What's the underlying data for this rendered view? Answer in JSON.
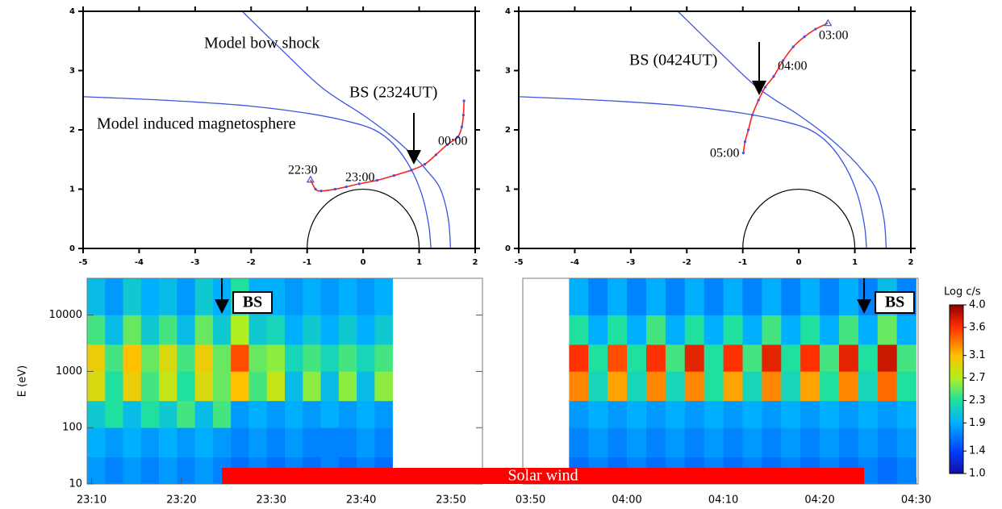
{
  "chart_data": [
    {
      "type": "orbit",
      "xlim": [
        -5,
        2
      ],
      "ylim": [
        0,
        4
      ],
      "xticks": [
        -5,
        -4,
        -3,
        -2,
        -1,
        0,
        1,
        2
      ],
      "yticks": [
        0,
        1,
        2,
        3,
        4
      ],
      "planet": {
        "color": "#000000",
        "radius": 1
      },
      "series": [
        {
          "name": "Model bow shock",
          "color": "#3a55e0",
          "x": [
            1.56,
            1.52,
            1.38,
            1.15,
            0.91,
            0.5,
            0,
            -0.72,
            -1.4,
            -2.16
          ],
          "y": [
            0,
            0.5,
            1.0,
            1.3,
            1.55,
            1.9,
            2.25,
            2.7,
            3.3,
            4
          ]
        },
        {
          "name": "Model induced magnetosphere",
          "color": "#3a55e0",
          "x": [
            1.21,
            1.17,
            1.05,
            0.85,
            0.55,
            0.2,
            -0.3,
            -1,
            -2,
            -3,
            -4,
            -5
          ],
          "y": [
            0,
            0.4,
            0.9,
            1.35,
            1.75,
            2.0,
            2.15,
            2.28,
            2.4,
            2.47,
            2.52,
            2.56
          ]
        },
        {
          "color": "#ff2020",
          "x": [
            -0.94,
            -0.85,
            -0.75,
            -0.5,
            -0.3,
            -0.07,
            0.25,
            0.55,
            0.86,
            1.1,
            1.3,
            1.5,
            1.69,
            1.76,
            1.79,
            1.8
          ],
          "y": [
            1.16,
            1.0,
            0.97,
            1.0,
            1.04,
            1.09,
            1.15,
            1.23,
            1.32,
            1.42,
            1.58,
            1.75,
            1.88,
            2.05,
            2.25,
            2.49
          ]
        }
      ],
      "annotations": [
        "22:30",
        "23:00",
        "00:00",
        "BS (2324UT)"
      ]
    },
    {
      "type": "orbit",
      "xlim": [
        -5,
        2
      ],
      "ylim": [
        0,
        4
      ],
      "xticks": [
        -5,
        -4,
        -3,
        -2,
        -1,
        0,
        1,
        2
      ],
      "yticks": [
        0,
        1,
        2,
        3,
        4
      ],
      "planet": {
        "color": "#000000",
        "radius": 1
      },
      "series": [
        {
          "color": "#3a55e0",
          "x": [
            1.56,
            1.52,
            1.38,
            1.15,
            0.91,
            0.5,
            0,
            -0.72,
            -1.4,
            -2.16
          ],
          "y": [
            0,
            0.5,
            1.0,
            1.3,
            1.55,
            1.9,
            2.25,
            2.7,
            3.3,
            4
          ]
        },
        {
          "color": "#3a55e0",
          "x": [
            1.21,
            1.17,
            1.05,
            0.85,
            0.55,
            0.2,
            -0.3,
            -1,
            -2,
            -3,
            -4,
            -5
          ],
          "y": [
            0,
            0.4,
            0.9,
            1.35,
            1.75,
            2.0,
            2.15,
            2.28,
            2.4,
            2.47,
            2.52,
            2.56
          ]
        },
        {
          "color": "#ff2020",
          "x": [
            0.52,
            0.3,
            0.1,
            -0.1,
            -0.28,
            -0.45,
            -0.6,
            -0.72,
            -0.83,
            -0.9,
            -0.96,
            -0.99
          ],
          "y": [
            3.8,
            3.7,
            3.57,
            3.4,
            3.17,
            2.9,
            2.72,
            2.5,
            2.25,
            2.0,
            1.8,
            1.61
          ]
        }
      ],
      "annotations": [
        "03:00",
        "04:00",
        "05:00",
        "BS (0424UT)"
      ]
    },
    {
      "type": "spectrogram",
      "ylabel": "E (eV)",
      "yscale": "log",
      "xlim": [
        1389.5,
        1433.5
      ],
      "ylim": [
        10,
        45000
      ],
      "xticks": [
        {
          "value": 1390,
          "label": "23:10"
        },
        {
          "value": 1400,
          "label": "23:20"
        },
        {
          "value": 1410,
          "label": "23:30"
        },
        {
          "value": 1420,
          "label": "23:40"
        },
        {
          "value": 1430,
          "label": "23:50"
        }
      ],
      "yticks": [
        10,
        100,
        1000,
        10000
      ],
      "xbins": [
        1389.5,
        1391.5,
        1393.5,
        1395.5,
        1397.5,
        1399.5,
        1401.5,
        1403.5,
        1405.5,
        1407.5,
        1409.5,
        1411.5,
        1413.5,
        1415.5,
        1417.5,
        1419.5,
        1421.5,
        1423.5,
        1425.5,
        1427.5,
        1429.5,
        1431.5,
        1433.5
      ],
      "ybins": [
        10,
        30,
        100,
        300,
        1000,
        3000,
        10000,
        45000
      ],
      "z": [
        [
          1.8,
          1.7,
          1.8,
          1.7,
          1.8,
          1.7,
          1.8,
          1.7,
          1.6,
          1.7,
          1.6,
          1.7,
          1.6,
          1.7,
          1.6,
          1.7,
          1.6,
          null,
          null,
          null,
          null,
          null
        ],
        [
          1.9,
          1.8,
          1.9,
          1.8,
          1.9,
          1.8,
          1.9,
          1.8,
          1.7,
          1.8,
          1.7,
          1.8,
          1.7,
          1.7,
          1.7,
          1.8,
          1.7,
          null,
          null,
          null,
          null,
          null
        ],
        [
          2.1,
          2.3,
          2.0,
          2.3,
          2.1,
          2.4,
          2.0,
          2.4,
          1.8,
          1.9,
          1.8,
          1.9,
          1.8,
          1.9,
          1.8,
          1.9,
          1.8,
          null,
          null,
          null,
          null,
          null
        ],
        [
          2.9,
          2.3,
          3.0,
          2.4,
          2.8,
          2.3,
          2.9,
          2.5,
          3.1,
          2.4,
          2.8,
          2.0,
          2.6,
          2.0,
          2.6,
          2.0,
          2.6,
          null,
          null,
          null,
          null,
          null
        ],
        [
          3.0,
          2.4,
          3.1,
          2.5,
          2.9,
          2.4,
          3.0,
          2.5,
          3.5,
          2.5,
          2.6,
          2.2,
          2.4,
          2.2,
          2.4,
          2.2,
          2.4,
          null,
          null,
          null,
          null,
          null
        ],
        [
          2.4,
          2.0,
          2.5,
          2.1,
          2.4,
          2.0,
          2.5,
          2.1,
          2.7,
          2.1,
          2.2,
          1.9,
          2.1,
          1.9,
          2.1,
          1.9,
          2.1,
          null,
          null,
          null,
          null,
          null
        ],
        [
          2.0,
          1.8,
          2.1,
          1.9,
          2.0,
          1.8,
          2.1,
          1.9,
          2.3,
          1.9,
          1.9,
          1.8,
          1.9,
          1.8,
          1.9,
          1.8,
          1.9,
          null,
          null,
          null,
          null,
          null
        ]
      ],
      "marker": {
        "label": "BS",
        "x": 1404.5
      }
    },
    {
      "type": "spectrogram",
      "yscale": "log",
      "xlim": [
        229.2,
        270.2
      ],
      "ylim": [
        10,
        45000
      ],
      "xticks": [
        {
          "value": 230,
          "label": "03:50"
        },
        {
          "value": 240,
          "label": "04:00"
        },
        {
          "value": 250,
          "label": "04:10"
        },
        {
          "value": 260,
          "label": "04:20"
        },
        {
          "value": 270,
          "label": "04:30"
        }
      ],
      "xbins": [
        230,
        232,
        234,
        236,
        238,
        240,
        242,
        244,
        246,
        248,
        250,
        252,
        254,
        256,
        258,
        260,
        262,
        264,
        266,
        268,
        270
      ],
      "ybins": [
        10,
        30,
        100,
        300,
        1000,
        3000,
        10000,
        45000
      ],
      "z": [
        [
          null,
          null,
          1.6,
          1.7,
          1.6,
          1.7,
          1.6,
          1.7,
          1.6,
          1.7,
          1.6,
          1.7,
          1.6,
          1.7,
          1.6,
          1.7,
          1.6,
          1.7,
          1.6,
          1.7
        ],
        [
          null,
          null,
          1.7,
          1.8,
          1.7,
          1.8,
          1.7,
          1.8,
          1.7,
          1.8,
          1.7,
          1.8,
          1.7,
          1.8,
          1.7,
          1.8,
          1.7,
          1.8,
          1.7,
          1.8
        ],
        [
          null,
          null,
          1.8,
          1.9,
          1.8,
          1.9,
          1.8,
          1.9,
          1.8,
          1.9,
          1.8,
          1.9,
          1.8,
          1.9,
          1.8,
          1.9,
          1.8,
          1.9,
          1.8,
          1.9
        ],
        [
          null,
          null,
          3.3,
          2.2,
          3.2,
          2.2,
          3.3,
          2.2,
          3.3,
          2.3,
          3.2,
          2.2,
          3.3,
          2.2,
          3.2,
          2.3,
          3.3,
          2.2,
          3.4,
          2.3
        ],
        [
          null,
          null,
          3.6,
          2.3,
          3.5,
          2.3,
          3.6,
          2.4,
          3.7,
          2.3,
          3.6,
          2.4,
          3.7,
          2.3,
          3.6,
          2.4,
          3.7,
          2.3,
          3.8,
          2.4
        ],
        [
          null,
          null,
          2.3,
          1.9,
          2.3,
          1.9,
          2.4,
          1.9,
          2.3,
          1.9,
          2.3,
          1.9,
          2.4,
          1.9,
          2.3,
          1.9,
          2.4,
          1.9,
          2.5,
          1.9
        ],
        [
          null,
          null,
          1.9,
          1.7,
          1.9,
          1.7,
          1.9,
          1.7,
          1.9,
          1.7,
          1.9,
          1.7,
          1.9,
          1.7,
          1.9,
          1.7,
          1.9,
          1.7,
          2.0,
          1.7
        ]
      ],
      "marker": {
        "label": "BS",
        "x": 264.6
      }
    }
  ],
  "colorbar": {
    "title": "Log c/s",
    "lim": [
      {
        "value": 1,
        "label": "1.0"
      },
      {
        "value": 4,
        "label": "4.0"
      }
    ],
    "ticks": [
      {
        "value": 1,
        "label": "1.0"
      },
      1.4,
      1.9,
      2.3,
      2.7,
      3.1,
      3.6,
      {
        "value": 4,
        "label": "4.0"
      }
    ],
    "colors": [
      "#1010a0",
      "#0040ff",
      "#00b0ff",
      "#20e0a0",
      "#b0f020",
      "#ffc000",
      "#ff3000",
      "#900000"
    ]
  },
  "solar_wind": {
    "label": "Solar wind",
    "color": "#ff0000",
    "start": 1404.5,
    "end": 264.6
  }
}
